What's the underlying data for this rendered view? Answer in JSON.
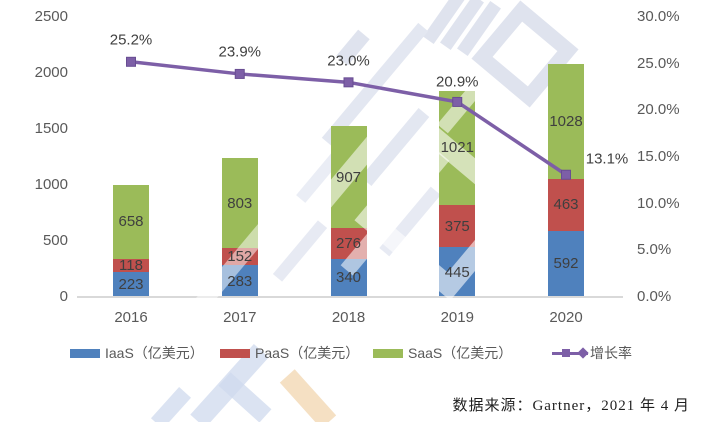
{
  "chart_data": {
    "type": "bar",
    "subtype": "stacked-bars-with-growth-line",
    "categories": [
      "2016",
      "2017",
      "2018",
      "2019",
      "2020"
    ],
    "series": [
      {
        "name": "IaaS（亿美元）",
        "type": "bar",
        "color": "#4f81bd",
        "values": [
          223,
          283,
          340,
          445,
          592
        ]
      },
      {
        "name": "PaaS（亿美元）",
        "type": "bar",
        "color": "#c0504d",
        "values": [
          118,
          152,
          276,
          375,
          463
        ]
      },
      {
        "name": "SaaS（亿美元）",
        "type": "bar",
        "color": "#9bbb59",
        "values": [
          658,
          803,
          907,
          1021,
          1028
        ]
      },
      {
        "name": "增长率",
        "type": "line",
        "axis": "right",
        "color": "#7d5fa7",
        "values": [
          25.2,
          23.9,
          23.0,
          20.9,
          13.1
        ],
        "labels": [
          "25.2%",
          "23.9%",
          "23.0%",
          "20.9%",
          "13.1%"
        ]
      }
    ],
    "left_axis": {
      "min": 0,
      "max": 2500,
      "step": 500,
      "ticks": [
        "2500",
        "2000",
        "1500",
        "1000",
        "500",
        "0"
      ]
    },
    "right_axis": {
      "min": 0,
      "max": 30,
      "step": 5,
      "ticks": [
        "30.0%",
        "25.0%",
        "20.0%",
        "15.0%",
        "10.0%",
        "5.0%",
        "0.0%"
      ]
    },
    "grid": false,
    "legend_position": "bottom",
    "legend": [
      "IaaS（亿美元）",
      "PaaS（亿美元）",
      "SaaS（亿美元）",
      "增长率"
    ]
  },
  "source_note": "数据来源：Gartner，2021 年 4 月",
  "colors": {
    "iaas": "#4f81bd",
    "paas": "#c0504d",
    "saas": "#9bbb59",
    "growth_line": "#7d5fa7",
    "axis_text": "#595959",
    "data_label": "#3f3f3f",
    "axis_line": "#d9d9d9"
  }
}
